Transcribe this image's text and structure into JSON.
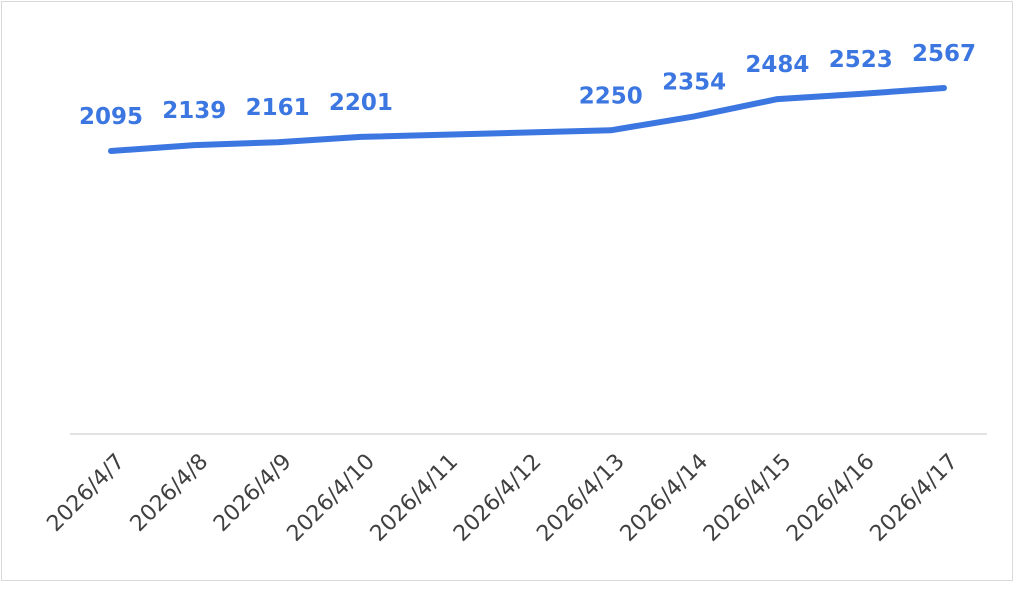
{
  "chart_data": {
    "type": "line",
    "x": [
      "2026/4/7",
      "2026/4/8",
      "2026/4/9",
      "2026/4/10",
      "2026/4/11",
      "2026/4/12",
      "2026/4/13",
      "2026/4/14",
      "2026/4/15",
      "2026/4/16",
      "2026/4/17"
    ],
    "points": [
      {
        "x": "2026/4/7",
        "y": 2095
      },
      {
        "x": "2026/4/8",
        "y": 2139
      },
      {
        "x": "2026/4/9",
        "y": 2161
      },
      {
        "x": "2026/4/10",
        "y": 2201
      },
      {
        "x": "2026/4/13",
        "y": 2250
      },
      {
        "x": "2026/4/14",
        "y": 2354
      },
      {
        "x": "2026/4/15",
        "y": 2484
      },
      {
        "x": "2026/4/16",
        "y": 2523
      },
      {
        "x": "2026/4/17",
        "y": 2567
      }
    ],
    "ylim": [
      0,
      2700
    ],
    "color": "#3b76e1",
    "drop_lines": true,
    "data_labels": true,
    "grid": false,
    "legend": "none",
    "title": "",
    "xlabel": "",
    "ylabel": ""
  }
}
